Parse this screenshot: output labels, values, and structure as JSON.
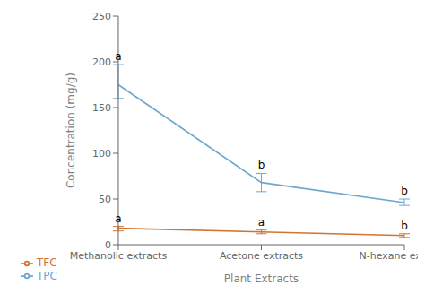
{
  "chart_data": {
    "type": "line",
    "categories": [
      "Methanolic extracts",
      "Acetone extracts",
      "N-hexane extracts"
    ],
    "xlabel": "Plant Extracts",
    "ylabel": "Concentration (mg/g)",
    "ylim": [
      0,
      250
    ],
    "yticks": [
      0,
      50,
      100,
      150,
      200,
      250
    ],
    "grid": false,
    "legend": "bottom",
    "series": [
      {
        "name": "TPC",
        "color": "#6ea6cd",
        "values": [
          175,
          68,
          46
        ],
        "error_low": [
          15,
          10,
          3
        ],
        "error_high": [
          22,
          10,
          4
        ],
        "labels": [
          "a",
          "b",
          "b"
        ]
      },
      {
        "name": "TFC",
        "color": "#d47230",
        "values": [
          18,
          14,
          10
        ],
        "error_low": [
          3,
          2,
          2
        ],
        "error_high": [
          2,
          2,
          2
        ],
        "labels": [
          "a",
          "a",
          "b"
        ]
      }
    ]
  }
}
